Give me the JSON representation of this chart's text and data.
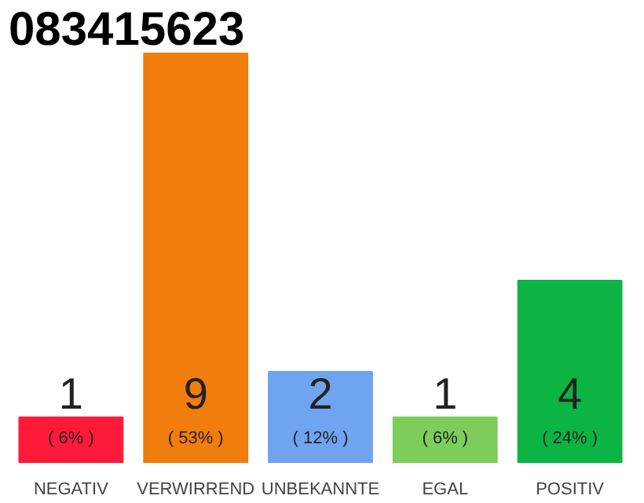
{
  "chart_data": {
    "type": "bar",
    "title": "083415623",
    "categories": [
      "NEGATIV",
      "VERWIRREND",
      "UNBEKANNTE",
      "EGAL",
      "POSITIV"
    ],
    "values": [
      1,
      9,
      2,
      1,
      4
    ],
    "colors": [
      "#ff1a3a",
      "#f07d0c",
      "#6ea4f0",
      "#7dcd5a",
      "#0cb443"
    ],
    "data_labels": true,
    "annotations": [
      "( 6% )",
      "( 53% )",
      "( 12% )",
      "( 6% )",
      "( 24% )"
    ],
    "grid": false
  }
}
